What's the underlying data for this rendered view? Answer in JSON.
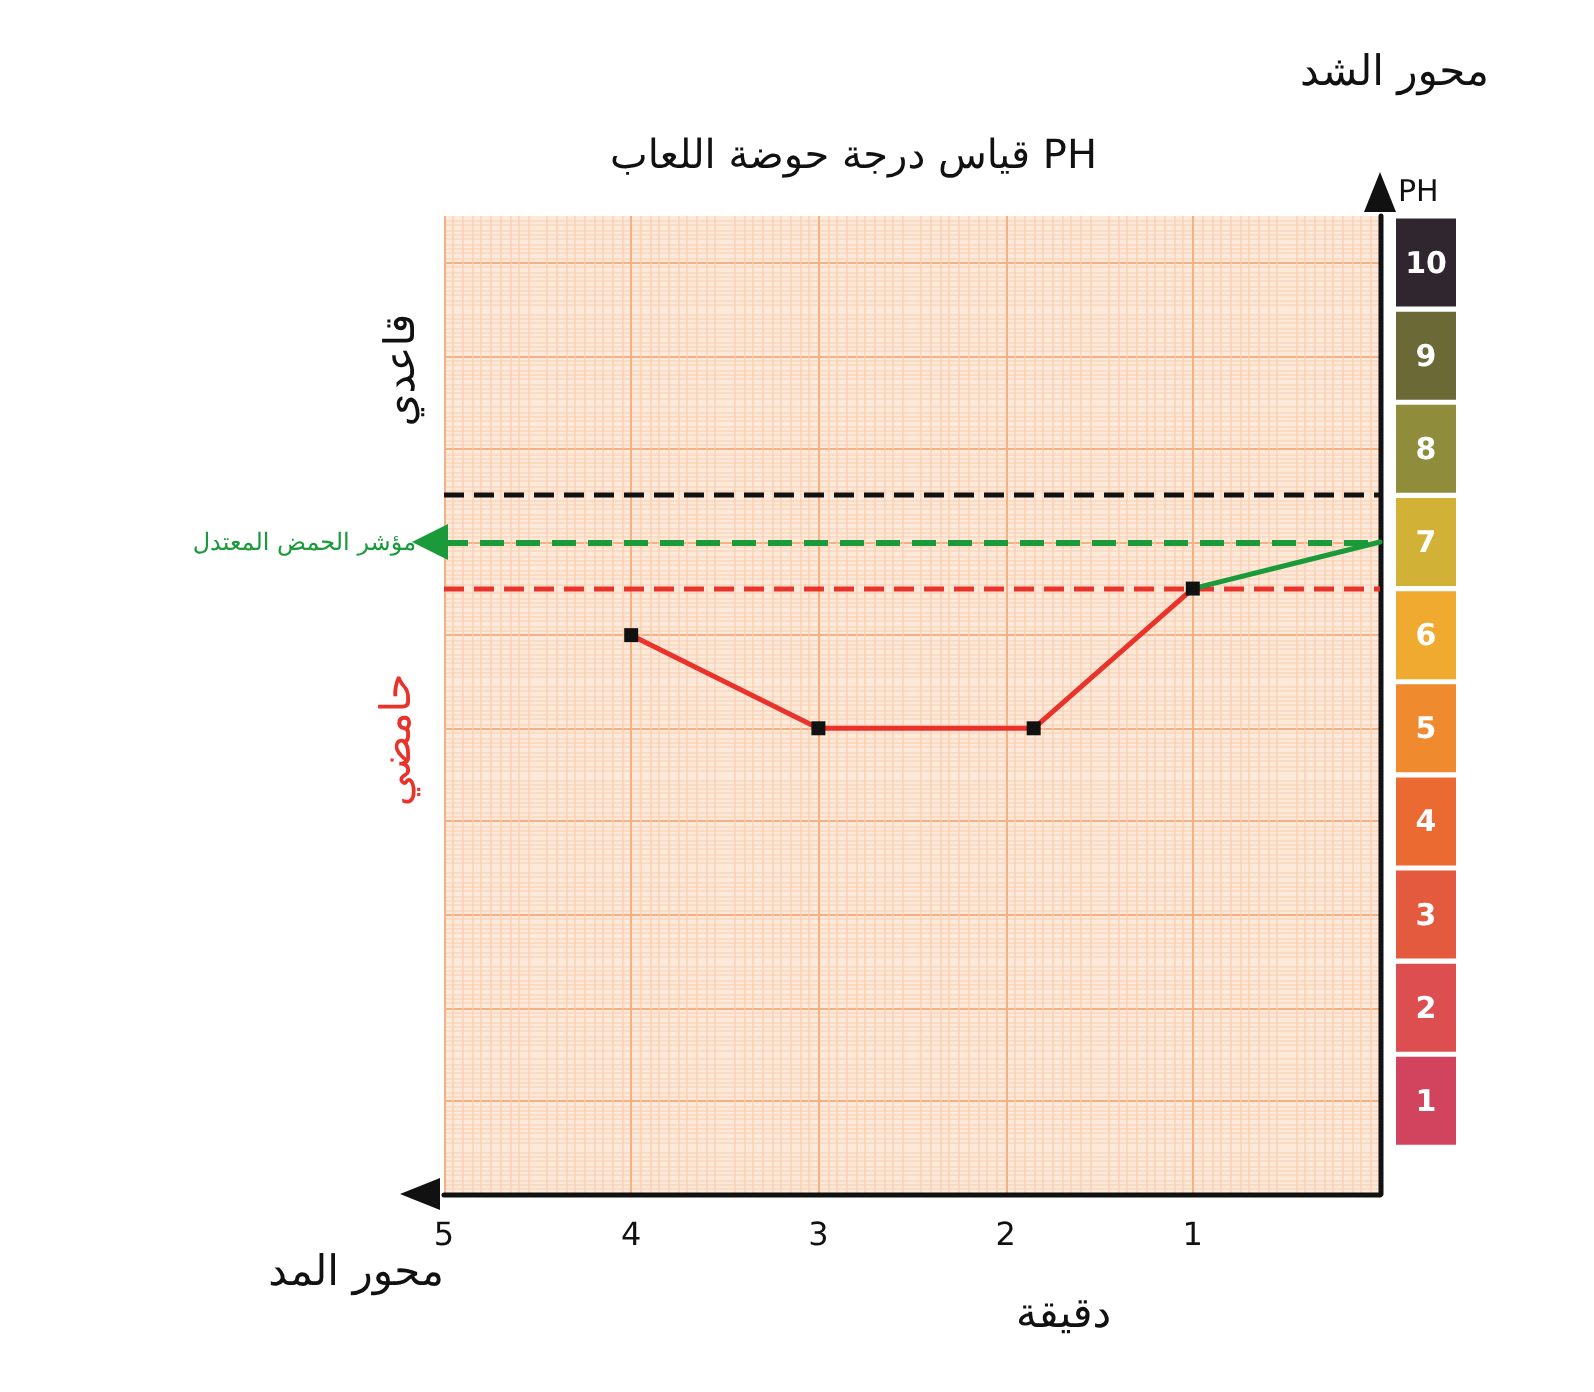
{
  "chart_data": {
    "type": "line",
    "title": "قياس درجة حوضة اللعاب PH",
    "xlabel": "محور المد",
    "ylabel": "محور الشد",
    "annotations": [
      "PH",
      "دقيقة",
      "قاعدي",
      "حامضي"
    ],
    "xlim": [
      5,
      0
    ],
    "xticks": [
      1,
      2,
      3,
      4,
      5
    ],
    "ylim": [
      0,
      10.5
    ],
    "yticks": [
      1,
      2,
      3,
      4,
      5,
      6,
      7,
      8,
      9,
      10
    ],
    "series": [
      {
        "color": "#1a9a3a",
        "x": [
          0,
          1
        ],
        "values": [
          7,
          6.5
        ]
      },
      {
        "color": "#e8322a",
        "x": [
          1,
          1.85,
          3,
          4
        ],
        "values": [
          6.5,
          5,
          5,
          6
        ],
        "marker": "square"
      }
    ],
    "ref_lines": [
      {
        "axis": "y",
        "value": 7.5,
        "color": "#111111",
        "line_style": "dashed"
      },
      {
        "axis": "y",
        "value": 7,
        "color": "#1a9a3a",
        "line_style": "dashed",
        "label": "مؤشر الحمض المعتدل"
      },
      {
        "axis": "y",
        "value": 6.5,
        "color": "#e8322a",
        "line_style": "dashed"
      }
    ],
    "grid": true,
    "line_style": "solid"
  }
}
